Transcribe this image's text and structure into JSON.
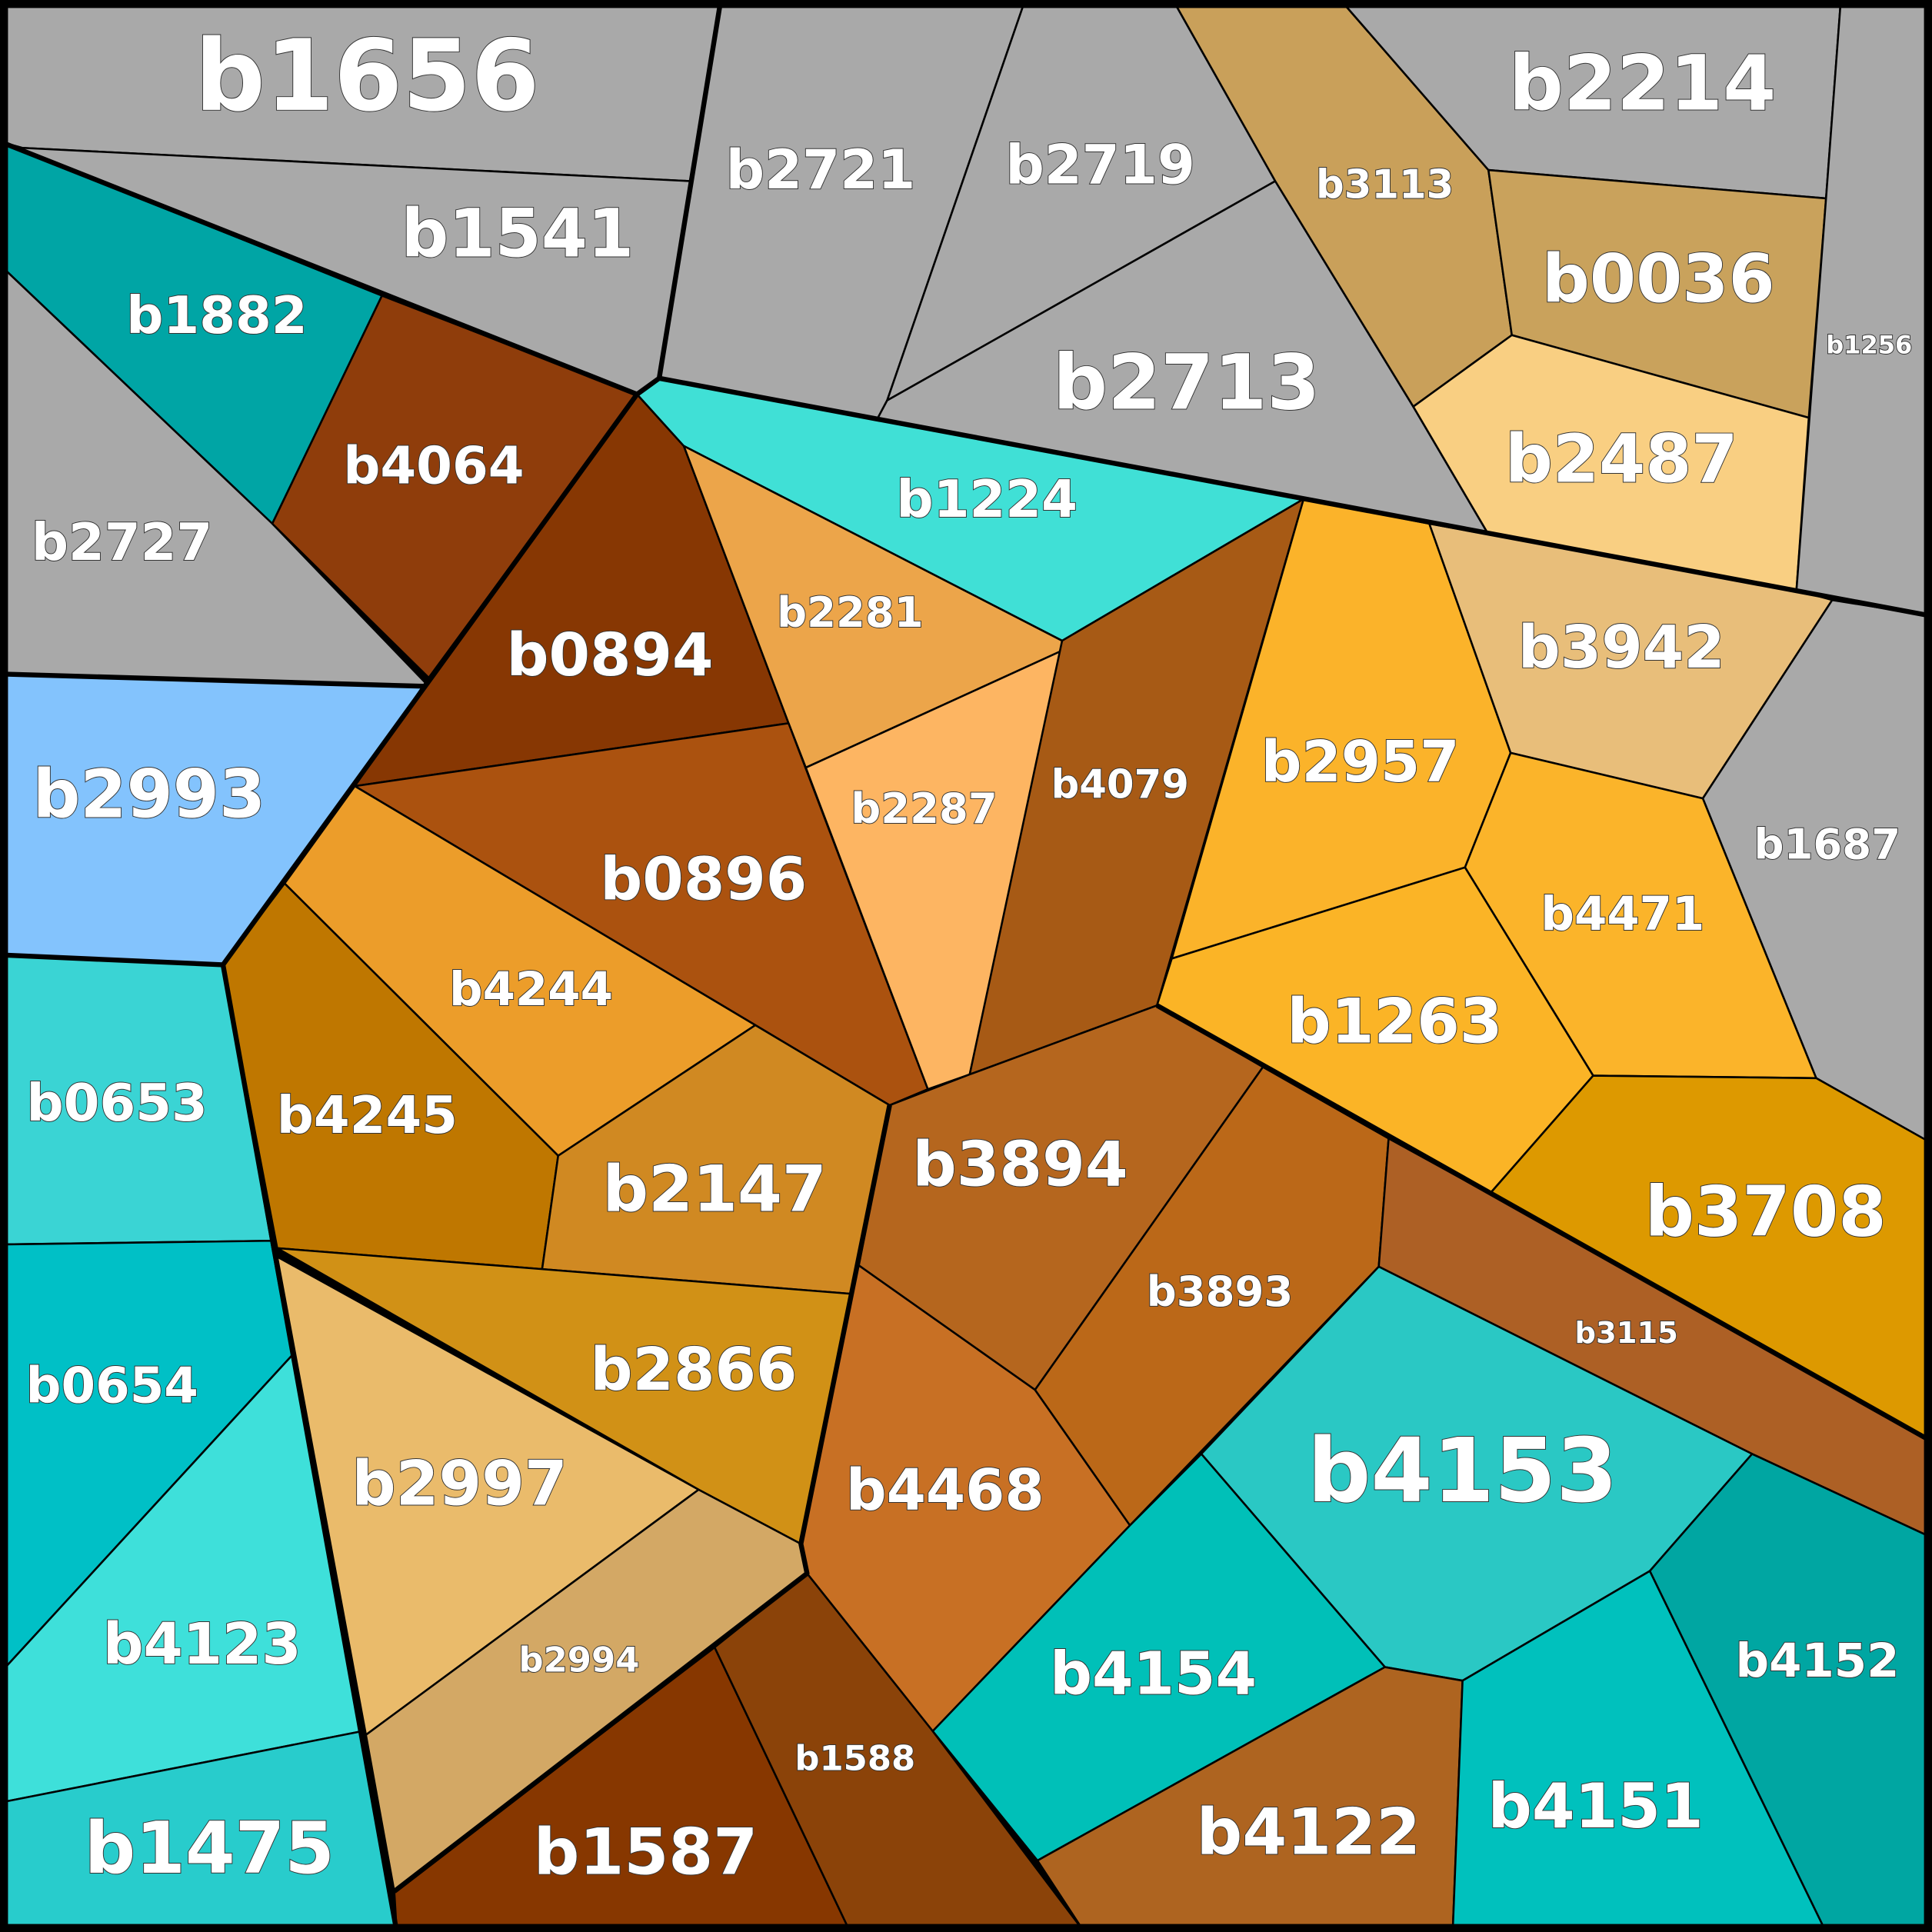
{
  "regions": [
    {
      "label": "b1656",
      "color": "#a9a9a9"
    },
    {
      "label": "b1541",
      "color": "#a9a9a9"
    },
    {
      "label": "b2721",
      "color": "#a9a9a9"
    },
    {
      "label": "b2719",
      "color": "#a9a9a9"
    },
    {
      "label": "b2713",
      "color": "#a9a9a9"
    },
    {
      "label": "b3113",
      "color": "#c9a05a"
    },
    {
      "label": "b2214",
      "color": "#a9a9a9"
    },
    {
      "label": "b0036",
      "color": "#c9a25c"
    },
    {
      "label": "b2487",
      "color": "#f9cf82"
    },
    {
      "label": "b1256",
      "color": "#a9a9a9"
    },
    {
      "label": "b1882",
      "color": "#00a5a5"
    },
    {
      "label": "b2727",
      "color": "#a9a9a9"
    },
    {
      "label": "b4064",
      "color": "#8f3d0b"
    },
    {
      "label": "b2993",
      "color": "#83c3fd"
    },
    {
      "label": "b0894",
      "color": "#873703"
    },
    {
      "label": "b1224",
      "color": "#40e0d6"
    },
    {
      "label": "b2281",
      "color": "#eca54a"
    },
    {
      "label": "b2287",
      "color": "#fdb562"
    },
    {
      "label": "b4079",
      "color": "#a75a15"
    },
    {
      "label": "b0896",
      "color": "#ab520f"
    },
    {
      "label": "b4244",
      "color": "#ec9d2a"
    },
    {
      "label": "b4245",
      "color": "#bf7700"
    },
    {
      "label": "b2147",
      "color": "#d08922"
    },
    {
      "label": "b2957",
      "color": "#fbb32a"
    },
    {
      "label": "b3942",
      "color": "#e8be7a"
    },
    {
      "label": "b1687",
      "color": "#a9a9a9"
    },
    {
      "label": "b4471",
      "color": "#fbb42a"
    },
    {
      "label": "b1263",
      "color": "#fbb426"
    },
    {
      "label": "b3708",
      "color": "#dd9900"
    },
    {
      "label": "b3894",
      "color": "#b5661e"
    },
    {
      "label": "b3893",
      "color": "#bb6818"
    },
    {
      "label": "b3115",
      "color": "#ad6025"
    },
    {
      "label": "b0653",
      "color": "#3ad4d4"
    },
    {
      "label": "b0654",
      "color": "#00c0c6"
    },
    {
      "label": "b4123",
      "color": "#3ee0da"
    },
    {
      "label": "b1475",
      "color": "#28cccc"
    },
    {
      "label": "b2866",
      "color": "#d19116"
    },
    {
      "label": "b2997",
      "color": "#eabb6b"
    },
    {
      "label": "b2994",
      "color": "#d3a865"
    },
    {
      "label": "b4468",
      "color": "#c87024"
    },
    {
      "label": "b1587",
      "color": "#873700"
    },
    {
      "label": "b1588",
      "color": "#8b4309"
    },
    {
      "label": "b4153",
      "color": "#2ac8c4"
    },
    {
      "label": "b4154",
      "color": "#00c0b8"
    },
    {
      "label": "b4122",
      "color": "#ae6420"
    },
    {
      "label": "b4151",
      "color": "#00c1bd"
    },
    {
      "label": "b4152",
      "color": "#00a6a2"
    }
  ]
}
